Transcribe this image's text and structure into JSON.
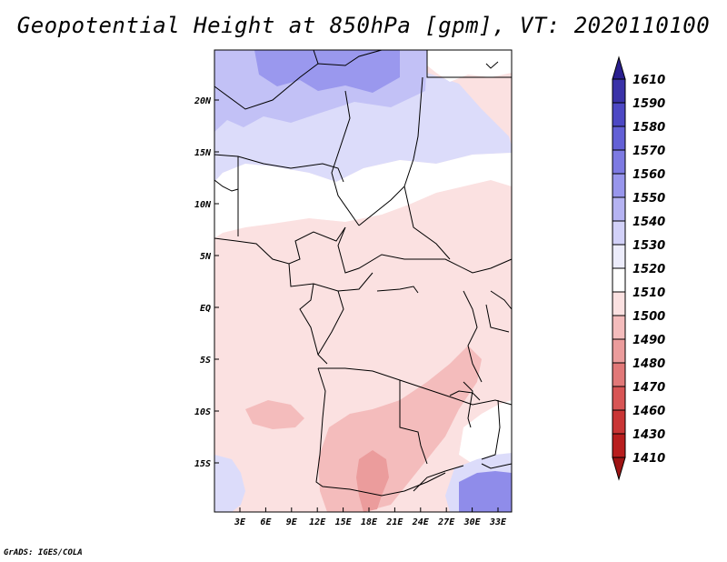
{
  "title": "Geopotential Height at 850hPa [gpm], VT: 2020110100",
  "credit": "GrADS: IGES/COLA",
  "map": {
    "lat_labels": [
      "20N",
      "15N",
      "10N",
      "5N",
      "EQ",
      "5S",
      "10S",
      "15S"
    ],
    "lon_labels": [
      "3E",
      "6E",
      "9E",
      "12E",
      "15E",
      "18E",
      "21E",
      "24E",
      "27E",
      "30E",
      "33E"
    ]
  },
  "colorbar": {
    "labels": [
      "1610",
      "1590",
      "1580",
      "1570",
      "1560",
      "1550",
      "1540",
      "1530",
      "1520",
      "1510",
      "1500",
      "1490",
      "1480",
      "1470",
      "1460",
      "1430",
      "1410"
    ],
    "colors": [
      "#2a1f8f",
      "#3a32a8",
      "#4d48c4",
      "#6360d6",
      "#7d7ae2",
      "#9896ec",
      "#b5b3f2",
      "#d2d1f8",
      "#ececfb",
      "#ffffff",
      "#fbe1e1",
      "#f4bcbc",
      "#eb9c9c",
      "#e17878",
      "#d85555",
      "#c93535",
      "#b81e1e",
      "#9e1414"
    ]
  },
  "regions": [
    {
      "name": "north-high-deep",
      "color": "#9a98ee"
    },
    {
      "name": "north-high-mid",
      "color": "#c2c1f6"
    },
    {
      "name": "north-high-light",
      "color": "#dcdcfa"
    },
    {
      "name": "sahel-neutral",
      "color": "#ffffff"
    },
    {
      "name": "central-low-light",
      "color": "#fbe1e1"
    },
    {
      "name": "south-low-mid",
      "color": "#f4bcbc"
    },
    {
      "name": "south-low-core",
      "color": "#eb9c9c"
    },
    {
      "name": "southeast-high",
      "color": "#8f8cea"
    }
  ]
}
